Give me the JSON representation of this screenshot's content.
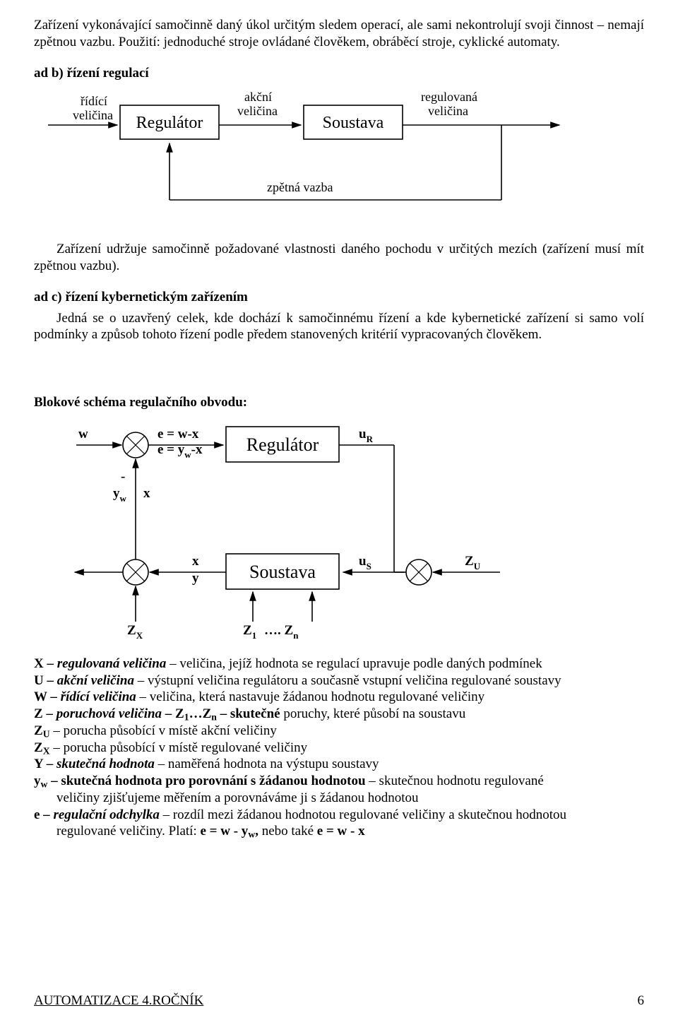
{
  "intro": {
    "p1": "Zařízení vykonávající samočinně daný úkol určitým sledem operací, ale sami nekontrolují svoji činnost – nemají zpětnou vazbu. Použití: jednoduché stroje ovládané člověkem, obráběcí stroje, cyklické automaty."
  },
  "sectionB": {
    "heading": "ad b) řízení regulací",
    "diagram": {
      "lbl_ridici1": "řídící",
      "lbl_ridici2": "veličina",
      "box_regulator": "Regulátor",
      "lbl_akcni1": "akční",
      "lbl_akcni2": "veličina",
      "box_soustava": "Soustava",
      "lbl_regulovana1": "regulovaná",
      "lbl_regulovana2": "veličina",
      "lbl_zpetna": "zpětná vazba",
      "box_fill": "#ffffff",
      "stroke": "#000000",
      "stroke_width": 1.6,
      "font_size_small": 18,
      "font_size_box": 24
    },
    "p1": "Zařízení udržuje samočinně požadované vlastnosti daného pochodu v určitých mezích (zařízení musí mít zpětnou vazbu)."
  },
  "sectionC": {
    "heading": "ad c)  řízení kybernetickým zařízením",
    "p1": "Jedná se o uzavřený celek, kde dochází k samočinnému řízení a kde kybernetické zařízení si samo volí podmínky a způsob tohoto řízení podle předem stanovených kritérií vypracovaných člověkem."
  },
  "blokove": {
    "heading": "Blokové schéma regulačního obvodu:",
    "diagram": {
      "box_regulator": "Regulátor",
      "box_soustava": "Soustava",
      "w": "w",
      "e1": "e = w-x",
      "e2_a": "e = y",
      "e2_b": "w",
      "e2_c": "-x",
      "minus": "-",
      "yw_a": "y",
      "yw_b": "w",
      "x": "x",
      "x2": "x",
      "y": "y",
      "uR_a": "u",
      "uR_b": "R",
      "uS_a": "u",
      "uS_b": "S",
      "ZU_a": "Z",
      "ZU_b": "U",
      "ZX_a": "Z",
      "ZX_b": "X",
      "Z1_a": "Z",
      "Z1_b": "1",
      "Zn_a": "…. Z",
      "Zn_b": "n",
      "stroke": "#000000",
      "stroke_width": 1.6,
      "font_size_box": 26,
      "font_size_lbl": 19
    }
  },
  "defs": [
    {
      "html": "<span class='term'>X – </span><span class='termi'>regulovaná veličina</span> – veličina, jejíž hodnota se regulací upravuje podle daných podmínek"
    },
    {
      "html": "<span class='term'>U – </span><span class='termi'>akční veličina</span> – výstupní veličina regulátoru a současně vstupní veličina regulované soustavy"
    },
    {
      "html": "<span class='term'>W – </span><span class='termi'>řídící veličina</span> – veličina, která nastavuje žádanou hodnotu regulované veličiny"
    },
    {
      "html": "<span class='term'>Z – </span><span class='termi'>poruchová veličina</span><span class='term'> – Z<sub>1</sub>…Z<sub>n</sub> – skutečné </span>poruchy, které působí na soustavu"
    },
    {
      "html": "<span class='term'>Z<sub>U</sub></span> – porucha působící v místě akční veličiny"
    },
    {
      "html": "<span class='term'>Z<sub>X</sub></span> – porucha působící v místě regulované veličiny"
    },
    {
      "html": "<span class='term'>Y – </span><span class='termi'>skutečná hodnota</span> – naměřená hodnota na výstupu soustavy"
    },
    {
      "html": "<span class='term'>y<sub>w</sub> – skutečná hodnota pro porovnání s žádanou hodnotou</span> – skutečnou hodnotu regulované"
    },
    {
      "html": "<span style='display:inline-block;width:32px'></span>veličiny zjišťujeme měřením a porovnáváme ji s žádanou hodnotou"
    },
    {
      "html": "<span class='term'>e – </span><span class='termi'>regulační odchylka</span> – rozdíl mezi žádanou hodnotou regulované veličiny a skutečnou hodnotou"
    },
    {
      "html": "<span style='display:inline-block;width:32px'></span>regulované veličiny. Platí: <span class='term'>e = w - y<sub>w</sub>,</span> nebo také <span class='term'>e = w - x</span>"
    }
  ],
  "footer": {
    "title": "AUTOMATIZACE  4.ROČNÍK",
    "page": "6"
  }
}
